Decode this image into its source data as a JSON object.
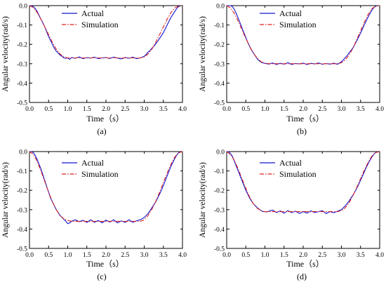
{
  "colors": {
    "actual": "#1414cc",
    "simulation": "#e02020",
    "axis": "#000000",
    "background": "#ffffff"
  },
  "legend": {
    "actual_label": "Actual",
    "simulation_label": "Simulation",
    "placement": "top-center"
  },
  "chart_data": [
    {
      "type": "line",
      "panel": "(a)",
      "caption": "(a)",
      "xlabel": "Time（s）",
      "ylabel": "Angular velocity(rad/s)",
      "xlim": [
        0.0,
        4.0
      ],
      "ylim": [
        -0.5,
        0.0
      ],
      "xticks": [
        "0.0",
        "0.5",
        "1.0",
        "1.5",
        "2.0",
        "2.5",
        "3.0",
        "3.5",
        "4.0"
      ],
      "yticks": [
        "0.0",
        "-0.1",
        "-0.2",
        "-0.3",
        "-0.4",
        "-0.5"
      ],
      "grid": false,
      "series": [
        {
          "name": "Actual",
          "style": "solid",
          "x": [
            0.0,
            0.05,
            0.1,
            0.15,
            0.2,
            0.25,
            0.3,
            0.35,
            0.4,
            0.45,
            0.5,
            0.55,
            0.6,
            0.65,
            0.7,
            0.75,
            0.8,
            0.85,
            0.9,
            0.95,
            1.0,
            1.05,
            1.1,
            1.2,
            1.3,
            1.4,
            1.5,
            1.6,
            1.7,
            1.8,
            1.9,
            2.0,
            2.1,
            2.2,
            2.3,
            2.4,
            2.5,
            2.6,
            2.7,
            2.8,
            2.9,
            3.0,
            3.05,
            3.1,
            3.15,
            3.2,
            3.25,
            3.3,
            3.35,
            3.4,
            3.45,
            3.5,
            3.55,
            3.6,
            3.65,
            3.7,
            3.75,
            3.8,
            3.85,
            3.9,
            3.95
          ],
          "y": [
            0.0,
            0.0,
            -0.005,
            -0.015,
            -0.03,
            -0.05,
            -0.07,
            -0.09,
            -0.11,
            -0.135,
            -0.16,
            -0.18,
            -0.2,
            -0.22,
            -0.235,
            -0.245,
            -0.255,
            -0.262,
            -0.27,
            -0.272,
            -0.27,
            -0.278,
            -0.268,
            -0.272,
            -0.265,
            -0.274,
            -0.268,
            -0.271,
            -0.266,
            -0.274,
            -0.27,
            -0.268,
            -0.273,
            -0.266,
            -0.271,
            -0.275,
            -0.268,
            -0.272,
            -0.266,
            -0.274,
            -0.27,
            -0.262,
            -0.252,
            -0.24,
            -0.232,
            -0.22,
            -0.21,
            -0.198,
            -0.185,
            -0.17,
            -0.155,
            -0.14,
            -0.12,
            -0.1,
            -0.08,
            -0.06,
            -0.045,
            -0.03,
            -0.015,
            -0.005,
            0.0
          ]
        },
        {
          "name": "Simulation",
          "style": "dash-dot",
          "x": [
            0.0,
            0.1,
            0.2,
            0.3,
            0.4,
            0.5,
            0.6,
            0.7,
            0.8,
            0.9,
            1.0,
            1.1,
            1.5,
            2.0,
            2.5,
            2.9,
            3.0,
            3.1,
            3.2,
            3.3,
            3.4,
            3.5,
            3.6,
            3.7,
            3.8,
            3.9,
            4.0
          ],
          "y": [
            0.0,
            -0.01,
            -0.035,
            -0.07,
            -0.11,
            -0.15,
            -0.19,
            -0.225,
            -0.25,
            -0.265,
            -0.27,
            -0.27,
            -0.27,
            -0.27,
            -0.27,
            -0.27,
            -0.265,
            -0.25,
            -0.225,
            -0.19,
            -0.15,
            -0.11,
            -0.07,
            -0.035,
            -0.012,
            -0.002,
            0.0
          ]
        }
      ]
    },
    {
      "type": "line",
      "panel": "(b)",
      "caption": "(b)",
      "xlabel": "Time（s）",
      "ylabel": "Angular velocity(rad/s)",
      "xlim": [
        0.0,
        4.0
      ],
      "ylim": [
        -0.5,
        0.0
      ],
      "xticks": [
        "0.0",
        "0.5",
        "1.0",
        "1.5",
        "2.0",
        "2.5",
        "3.0",
        "3.5",
        "4.0"
      ],
      "yticks": [
        "0.0",
        "-0.1",
        "-0.2",
        "-0.3",
        "-0.4",
        "-0.5"
      ],
      "grid": false,
      "series": [
        {
          "name": "Actual",
          "style": "solid",
          "x": [
            0.0,
            0.05,
            0.1,
            0.15,
            0.2,
            0.25,
            0.3,
            0.35,
            0.4,
            0.45,
            0.5,
            0.55,
            0.6,
            0.65,
            0.7,
            0.75,
            0.8,
            0.85,
            0.9,
            0.95,
            1.0,
            1.05,
            1.1,
            1.2,
            1.3,
            1.4,
            1.5,
            1.6,
            1.7,
            1.8,
            1.9,
            2.0,
            2.1,
            2.2,
            2.3,
            2.4,
            2.5,
            2.6,
            2.7,
            2.8,
            2.9,
            3.0,
            3.05,
            3.1,
            3.15,
            3.2,
            3.25,
            3.3,
            3.35,
            3.4,
            3.45,
            3.5,
            3.55,
            3.6,
            3.65,
            3.7,
            3.75,
            3.8,
            3.85,
            3.9,
            3.95
          ],
          "y": [
            0.0,
            0.0,
            0.0,
            -0.005,
            -0.02,
            -0.04,
            -0.065,
            -0.09,
            -0.115,
            -0.14,
            -0.165,
            -0.19,
            -0.21,
            -0.23,
            -0.245,
            -0.26,
            -0.275,
            -0.285,
            -0.292,
            -0.296,
            -0.298,
            -0.3,
            -0.302,
            -0.296,
            -0.304,
            -0.298,
            -0.302,
            -0.295,
            -0.304,
            -0.299,
            -0.301,
            -0.297,
            -0.304,
            -0.298,
            -0.301,
            -0.296,
            -0.303,
            -0.299,
            -0.302,
            -0.297,
            -0.303,
            -0.29,
            -0.28,
            -0.268,
            -0.258,
            -0.245,
            -0.232,
            -0.218,
            -0.2,
            -0.182,
            -0.162,
            -0.142,
            -0.12,
            -0.098,
            -0.078,
            -0.058,
            -0.04,
            -0.022,
            -0.01,
            -0.002,
            0.0
          ]
        },
        {
          "name": "Simulation",
          "style": "dash-dot",
          "x": [
            0.0,
            0.1,
            0.2,
            0.3,
            0.4,
            0.5,
            0.6,
            0.7,
            0.8,
            0.9,
            1.0,
            1.1,
            1.5,
            2.0,
            2.5,
            2.9,
            3.0,
            3.1,
            3.2,
            3.3,
            3.4,
            3.5,
            3.6,
            3.7,
            3.8,
            3.9,
            4.0
          ],
          "y": [
            0.0,
            -0.012,
            -0.04,
            -0.08,
            -0.125,
            -0.17,
            -0.21,
            -0.245,
            -0.272,
            -0.29,
            -0.298,
            -0.3,
            -0.3,
            -0.3,
            -0.3,
            -0.3,
            -0.295,
            -0.28,
            -0.255,
            -0.22,
            -0.175,
            -0.13,
            -0.085,
            -0.045,
            -0.015,
            -0.003,
            0.0
          ]
        }
      ]
    },
    {
      "type": "line",
      "panel": "(c)",
      "caption": "(c)",
      "xlabel": "Time（s）",
      "ylabel": "Angular velocity(rad/s)",
      "xlim": [
        0.0,
        4.0
      ],
      "ylim": [
        -0.5,
        0.0
      ],
      "xticks": [
        "0.0",
        "0.5",
        "1.0",
        "1.5",
        "2.0",
        "2.5",
        "3.0",
        "3.5",
        "4.0"
      ],
      "yticks": [
        "0.0",
        "-0.1",
        "-0.2",
        "-0.3",
        "-0.4",
        "-0.5"
      ],
      "grid": false,
      "series": [
        {
          "name": "Actual",
          "style": "solid",
          "x": [
            0.0,
            0.05,
            0.1,
            0.15,
            0.2,
            0.25,
            0.3,
            0.35,
            0.4,
            0.45,
            0.5,
            0.55,
            0.6,
            0.65,
            0.7,
            0.75,
            0.8,
            0.85,
            0.9,
            0.95,
            1.0,
            1.05,
            1.1,
            1.2,
            1.3,
            1.4,
            1.5,
            1.6,
            1.7,
            1.8,
            1.9,
            2.0,
            2.1,
            2.2,
            2.3,
            2.4,
            2.5,
            2.6,
            2.7,
            2.8,
            2.9,
            3.0,
            3.05,
            3.1,
            3.15,
            3.2,
            3.25,
            3.3,
            3.35,
            3.4,
            3.45,
            3.5,
            3.55,
            3.6,
            3.65,
            3.7,
            3.75,
            3.8,
            3.85,
            3.9,
            3.95
          ],
          "y": [
            0.0,
            0.0,
            -0.005,
            -0.02,
            -0.04,
            -0.065,
            -0.09,
            -0.12,
            -0.15,
            -0.18,
            -0.21,
            -0.24,
            -0.26,
            -0.28,
            -0.3,
            -0.315,
            -0.33,
            -0.34,
            -0.35,
            -0.36,
            -0.372,
            -0.368,
            -0.36,
            -0.352,
            -0.362,
            -0.355,
            -0.366,
            -0.352,
            -0.365,
            -0.356,
            -0.368,
            -0.354,
            -0.364,
            -0.352,
            -0.368,
            -0.358,
            -0.366,
            -0.352,
            -0.365,
            -0.357,
            -0.352,
            -0.34,
            -0.33,
            -0.32,
            -0.305,
            -0.29,
            -0.275,
            -0.26,
            -0.24,
            -0.22,
            -0.2,
            -0.175,
            -0.15,
            -0.125,
            -0.1,
            -0.075,
            -0.055,
            -0.035,
            -0.018,
            -0.006,
            0.0
          ]
        },
        {
          "name": "Simulation",
          "style": "dash-dot",
          "x": [
            0.0,
            0.1,
            0.2,
            0.3,
            0.4,
            0.5,
            0.6,
            0.7,
            0.8,
            0.9,
            1.0,
            1.1,
            1.5,
            2.0,
            2.5,
            2.9,
            3.0,
            3.1,
            3.2,
            3.3,
            3.4,
            3.5,
            3.6,
            3.7,
            3.8,
            3.9,
            4.0
          ],
          "y": [
            0.0,
            -0.015,
            -0.05,
            -0.1,
            -0.155,
            -0.21,
            -0.26,
            -0.3,
            -0.33,
            -0.348,
            -0.355,
            -0.36,
            -0.36,
            -0.36,
            -0.36,
            -0.36,
            -0.352,
            -0.33,
            -0.298,
            -0.258,
            -0.21,
            -0.16,
            -0.11,
            -0.065,
            -0.028,
            -0.006,
            0.0
          ]
        }
      ]
    },
    {
      "type": "line",
      "panel": "(d)",
      "caption": "(d)",
      "xlabel": "Time（s）",
      "ylabel": "Angular velocity(rad/s)",
      "xlim": [
        0.0,
        4.0
      ],
      "ylim": [
        -0.5,
        0.0
      ],
      "xticks": [
        "0.0",
        "0.5",
        "1.0",
        "1.5",
        "2.0",
        "2.5",
        "3.0",
        "3.5",
        "4.0"
      ],
      "yticks": [
        "0.0",
        "-0.1",
        "-0.2",
        "-0.3",
        "-0.4",
        "-0.5"
      ],
      "grid": false,
      "series": [
        {
          "name": "Actual",
          "style": "solid",
          "x": [
            0.0,
            0.05,
            0.1,
            0.15,
            0.2,
            0.25,
            0.3,
            0.35,
            0.4,
            0.45,
            0.5,
            0.55,
            0.6,
            0.65,
            0.7,
            0.75,
            0.8,
            0.85,
            0.9,
            0.95,
            1.0,
            1.05,
            1.1,
            1.2,
            1.3,
            1.4,
            1.5,
            1.6,
            1.7,
            1.8,
            1.9,
            2.0,
            2.1,
            2.2,
            2.3,
            2.4,
            2.5,
            2.6,
            2.7,
            2.8,
            2.9,
            3.0,
            3.05,
            3.1,
            3.15,
            3.2,
            3.25,
            3.3,
            3.35,
            3.4,
            3.45,
            3.5,
            3.55,
            3.6,
            3.65,
            3.7,
            3.75,
            3.8,
            3.85,
            3.9,
            3.95
          ],
          "y": [
            0.0,
            0.0,
            -0.01,
            -0.025,
            -0.05,
            -0.075,
            -0.1,
            -0.125,
            -0.15,
            -0.175,
            -0.2,
            -0.22,
            -0.24,
            -0.255,
            -0.27,
            -0.28,
            -0.29,
            -0.298,
            -0.305,
            -0.31,
            -0.31,
            -0.312,
            -0.308,
            -0.302,
            -0.315,
            -0.306,
            -0.318,
            -0.305,
            -0.315,
            -0.308,
            -0.32,
            -0.31,
            -0.318,
            -0.306,
            -0.315,
            -0.31,
            -0.305,
            -0.32,
            -0.31,
            -0.316,
            -0.308,
            -0.3,
            -0.29,
            -0.28,
            -0.268,
            -0.255,
            -0.24,
            -0.225,
            -0.208,
            -0.19,
            -0.17,
            -0.148,
            -0.126,
            -0.104,
            -0.082,
            -0.062,
            -0.044,
            -0.027,
            -0.013,
            -0.004,
            0.0
          ]
        },
        {
          "name": "Simulation",
          "style": "dash-dot",
          "x": [
            0.0,
            0.1,
            0.2,
            0.3,
            0.4,
            0.5,
            0.6,
            0.7,
            0.8,
            0.9,
            1.0,
            1.1,
            1.5,
            2.0,
            2.5,
            2.9,
            3.0,
            3.1,
            3.2,
            3.3,
            3.4,
            3.5,
            3.6,
            3.7,
            3.8,
            3.9,
            4.0
          ],
          "y": [
            0.0,
            -0.015,
            -0.045,
            -0.09,
            -0.14,
            -0.19,
            -0.235,
            -0.27,
            -0.293,
            -0.305,
            -0.31,
            -0.31,
            -0.31,
            -0.31,
            -0.31,
            -0.31,
            -0.305,
            -0.29,
            -0.265,
            -0.228,
            -0.185,
            -0.14,
            -0.095,
            -0.055,
            -0.022,
            -0.005,
            0.0
          ]
        }
      ]
    }
  ]
}
